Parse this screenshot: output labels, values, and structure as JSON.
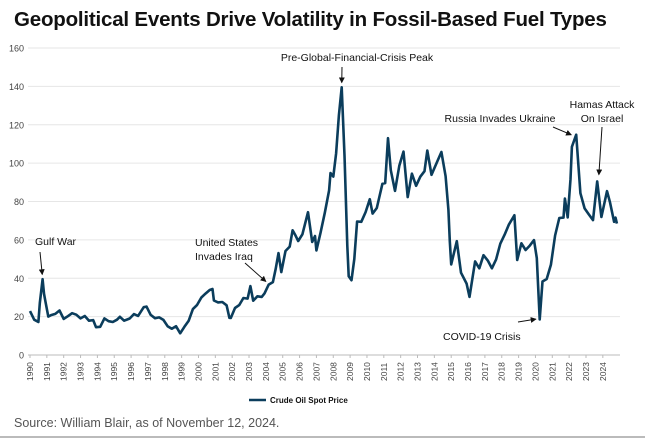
{
  "title": "Geopolitical Events Drive Volatility in Fossil-Based Fuel Types",
  "source": "Source: William Blair, as of November 12, 2024.",
  "chart_data": {
    "type": "line",
    "title": "Geopolitical Events Drive Volatility in Fossil-Based Fuel Types",
    "xlabel": "",
    "ylabel": "",
    "xlim": [
      1990,
      2024.9
    ],
    "ylim": [
      0,
      160
    ],
    "yticks": [
      0,
      20,
      40,
      60,
      80,
      100,
      120,
      140,
      160
    ],
    "xticks": [
      "1990",
      "1991",
      "1992",
      "1993",
      "1994",
      "1995",
      "1996",
      "1997",
      "1998",
      "1999",
      "2000",
      "2001",
      "2002",
      "2003",
      "2004",
      "2005",
      "2006",
      "2007",
      "2008",
      "2009",
      "2010",
      "2011",
      "2012",
      "2013",
      "2014",
      "2015",
      "2016",
      "2017",
      "2018",
      "2019",
      "2020",
      "2021",
      "2022",
      "2023",
      "2024"
    ],
    "grid": "horizontal",
    "legend_position": "bottom",
    "color": "#0b3d5c",
    "series": [
      {
        "name": "Crude Oil Spot Price",
        "points": [
          [
            "1990-01",
            22.9
          ],
          [
            "1990-04",
            18.4
          ],
          [
            "1990-07",
            17.2
          ],
          [
            "1990-08",
            27.0
          ],
          [
            "1990-10",
            39.5
          ],
          [
            "1990-11",
            32
          ],
          [
            "1990-12",
            28
          ],
          [
            "1991-02",
            20
          ],
          [
            "1991-04",
            20.8
          ],
          [
            "1991-07",
            21.4
          ],
          [
            "1991-10",
            23.2
          ],
          [
            "1992-01",
            18.8
          ],
          [
            "1992-04",
            20.2
          ],
          [
            "1992-07",
            21.8
          ],
          [
            "1992-10",
            21.0
          ],
          [
            "1993-01",
            19.1
          ],
          [
            "1993-04",
            20.3
          ],
          [
            "1993-07",
            17.9
          ],
          [
            "1993-10",
            18.2
          ],
          [
            "1993-12",
            14.5
          ],
          [
            "1994-03",
            14.7
          ],
          [
            "1994-06",
            19.1
          ],
          [
            "1994-09",
            17.6
          ],
          [
            "1994-12",
            17.2
          ],
          [
            "1995-03",
            18.4
          ],
          [
            "1995-05",
            19.9
          ],
          [
            "1995-08",
            17.9
          ],
          [
            "1995-12",
            19.0
          ],
          [
            "1996-03",
            21.3
          ],
          [
            "1996-06",
            20.4
          ],
          [
            "1996-10",
            24.9
          ],
          [
            "1996-12",
            25.2
          ],
          [
            "1997-03",
            20.9
          ],
          [
            "1997-06",
            19.2
          ],
          [
            "1997-09",
            19.6
          ],
          [
            "1997-12",
            18.3
          ],
          [
            "1998-03",
            15.0
          ],
          [
            "1998-06",
            13.7
          ],
          [
            "1998-09",
            15.0
          ],
          [
            "1998-12",
            11.3
          ],
          [
            "1999-03",
            14.7
          ],
          [
            "1999-06",
            17.9
          ],
          [
            "1999-09",
            23.9
          ],
          [
            "1999-12",
            26.1
          ],
          [
            "2000-03",
            29.9
          ],
          [
            "2000-06",
            32.0
          ],
          [
            "2000-09",
            33.9
          ],
          [
            "2000-11",
            34.4
          ],
          [
            "2000-12",
            28.4
          ],
          [
            "2001-03",
            27.4
          ],
          [
            "2001-06",
            27.6
          ],
          [
            "2001-09",
            25.9
          ],
          [
            "2001-11",
            19.4
          ],
          [
            "2001-12",
            19.3
          ],
          [
            "2002-03",
            24.5
          ],
          [
            "2002-06",
            26.0
          ],
          [
            "2002-09",
            29.7
          ],
          [
            "2002-12",
            29.4
          ],
          [
            "2003-02",
            35.9
          ],
          [
            "2003-04",
            28.3
          ],
          [
            "2003-07",
            30.6
          ],
          [
            "2003-10",
            30.3
          ],
          [
            "2003-12",
            32.1
          ],
          [
            "2004-03",
            36.7
          ],
          [
            "2004-06",
            38.0
          ],
          [
            "2004-08",
            44.9
          ],
          [
            "2004-10",
            53.1
          ],
          [
            "2004-12",
            43.2
          ],
          [
            "2005-03",
            54.2
          ],
          [
            "2005-06",
            56.5
          ],
          [
            "2005-08",
            65.0
          ],
          [
            "2005-10",
            62.4
          ],
          [
            "2005-12",
            59.4
          ],
          [
            "2006-03",
            62.9
          ],
          [
            "2006-07",
            74.4
          ],
          [
            "2006-10",
            58.9
          ],
          [
            "2006-12",
            62.0
          ],
          [
            "2007-01",
            54.5
          ],
          [
            "2007-04",
            63.9
          ],
          [
            "2007-07",
            74.1
          ],
          [
            "2007-10",
            85.8
          ],
          [
            "2007-11",
            94.8
          ],
          [
            "2008-01",
            93
          ],
          [
            "2008-03",
            105
          ],
          [
            "2008-05",
            125
          ],
          [
            "2008-07",
            139.5
          ],
          [
            "2008-09",
            104
          ],
          [
            "2008-11",
            57
          ],
          [
            "2008-12",
            41
          ],
          [
            "2009-02",
            39
          ],
          [
            "2009-04",
            50
          ],
          [
            "2009-06",
            69.6
          ],
          [
            "2009-09",
            69.4
          ],
          [
            "2009-12",
            74.5
          ],
          [
            "2010-03",
            81.2
          ],
          [
            "2010-05",
            73.7
          ],
          [
            "2010-08",
            76.6
          ],
          [
            "2010-12",
            89.2
          ],
          [
            "2011-02",
            89.6
          ],
          [
            "2011-04",
            113
          ],
          [
            "2011-06",
            96.3
          ],
          [
            "2011-09",
            85.5
          ],
          [
            "2011-12",
            98.6
          ],
          [
            "2012-03",
            106
          ],
          [
            "2012-06",
            82.3
          ],
          [
            "2012-09",
            94.5
          ],
          [
            "2012-12",
            88.2
          ],
          [
            "2013-03",
            92.9
          ],
          [
            "2013-06",
            95.8
          ],
          [
            "2013-08",
            106.6
          ],
          [
            "2013-11",
            93.9
          ],
          [
            "2014-03",
            100.8
          ],
          [
            "2014-06",
            105.8
          ],
          [
            "2014-09",
            93.2
          ],
          [
            "2014-11",
            75.8
          ],
          [
            "2014-12",
            59.3
          ],
          [
            "2015-01",
            47.2
          ],
          [
            "2015-05",
            59.3
          ],
          [
            "2015-08",
            42.9
          ],
          [
            "2015-12",
            37.2
          ],
          [
            "2016-02",
            30.3
          ],
          [
            "2016-06",
            48.8
          ],
          [
            "2016-09",
            45.2
          ],
          [
            "2016-12",
            52
          ],
          [
            "2017-03",
            49.3
          ],
          [
            "2017-06",
            45.2
          ],
          [
            "2017-09",
            49.8
          ],
          [
            "2017-12",
            58
          ],
          [
            "2018-03",
            62.7
          ],
          [
            "2018-06",
            67.9
          ],
          [
            "2018-10",
            72.8
          ],
          [
            "2018-12",
            49.5
          ],
          [
            "2019-03",
            58.2
          ],
          [
            "2019-06",
            54.7
          ],
          [
            "2019-09",
            57
          ],
          [
            "2019-12",
            59.9
          ],
          [
            "2020-02",
            50.5
          ],
          [
            "2020-04",
            18.5
          ],
          [
            "2020-06",
            38.3
          ],
          [
            "2020-09",
            39.6
          ],
          [
            "2020-12",
            47
          ],
          [
            "2021-03",
            62.3
          ],
          [
            "2021-06",
            71.4
          ],
          [
            "2021-09",
            71.6
          ],
          [
            "2021-10",
            81.5
          ],
          [
            "2021-12",
            71.7
          ],
          [
            "2022-02",
            91.6
          ],
          [
            "2022-03",
            108.5
          ],
          [
            "2022-06",
            114.8
          ],
          [
            "2022-09",
            84.3
          ],
          [
            "2022-12",
            76.4
          ],
          [
            "2023-03",
            73.3
          ],
          [
            "2023-06",
            70.3
          ],
          [
            "2023-09",
            90.5
          ],
          [
            "2023-12",
            71.9
          ],
          [
            "2024-04",
            85.4
          ],
          [
            "2024-06",
            79.8
          ],
          [
            "2024-09",
            69.4
          ],
          [
            "2024-10",
            71.6
          ],
          [
            "2024-11",
            68.5
          ]
        ]
      }
    ],
    "annotations": [
      {
        "text": [
          "Gulf War"
        ],
        "target": [
          "1990-10",
          40
        ]
      },
      {
        "text": [
          "United States",
          "Invades Iraq"
        ],
        "target": [
          "2004-03",
          37
        ]
      },
      {
        "text": [
          "Pre-Global-Financial-Crisis Peak"
        ],
        "target": [
          "2008-07",
          140
        ]
      },
      {
        "text": [
          "COVID-19 Crisis"
        ],
        "target": [
          "2020-04",
          19
        ]
      },
      {
        "text": [
          "Russia Invades Ukraine"
        ],
        "target": [
          "2022-05",
          114
        ]
      },
      {
        "text": [
          "Hamas Attack",
          "On Israel"
        ],
        "target": [
          "2023-10",
          92
        ]
      }
    ]
  }
}
